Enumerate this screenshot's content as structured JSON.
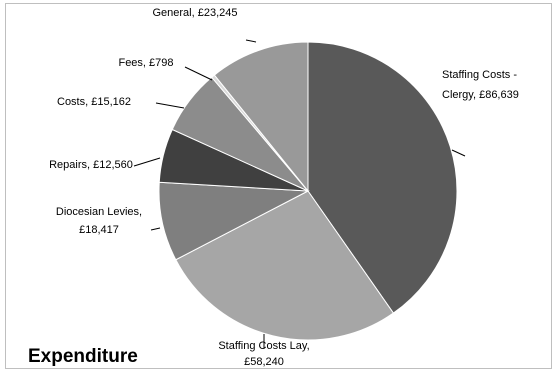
{
  "chart_data": {
    "type": "pie",
    "title": "Expenditure",
    "series": [
      {
        "categories": [
          "Staffing Costs - Clergy",
          "Staffing Costs Lay",
          "Diocesian Levies",
          "Repairs",
          "Costs",
          "Fees",
          "General"
        ],
        "values": [
          86639,
          58240,
          18417,
          12560,
          15162,
          798,
          23245
        ],
        "value_labels": [
          "£86,639",
          "£58,240",
          "£18,417",
          "£12,560",
          "£15,162",
          "£798",
          "£23,245"
        ],
        "colors": [
          "#595959",
          "#a6a6a6",
          "#7f7f7f",
          "#404040",
          "#8c8c8c",
          "#d9d9d9",
          "#999999"
        ]
      }
    ],
    "data_labels": [
      [
        "Staffing Costs -",
        "Clergy,  £86,639"
      ],
      [
        "Staffing Costs Lay,",
        "£58,240"
      ],
      [
        "Diocesian Levies,",
        "£18,417"
      ],
      [
        "Repairs,  £12,560"
      ],
      [
        "Costs,  £15,162"
      ],
      [
        "Fees,  £798"
      ],
      [
        "General,  £23,245"
      ]
    ],
    "legend": "none"
  }
}
